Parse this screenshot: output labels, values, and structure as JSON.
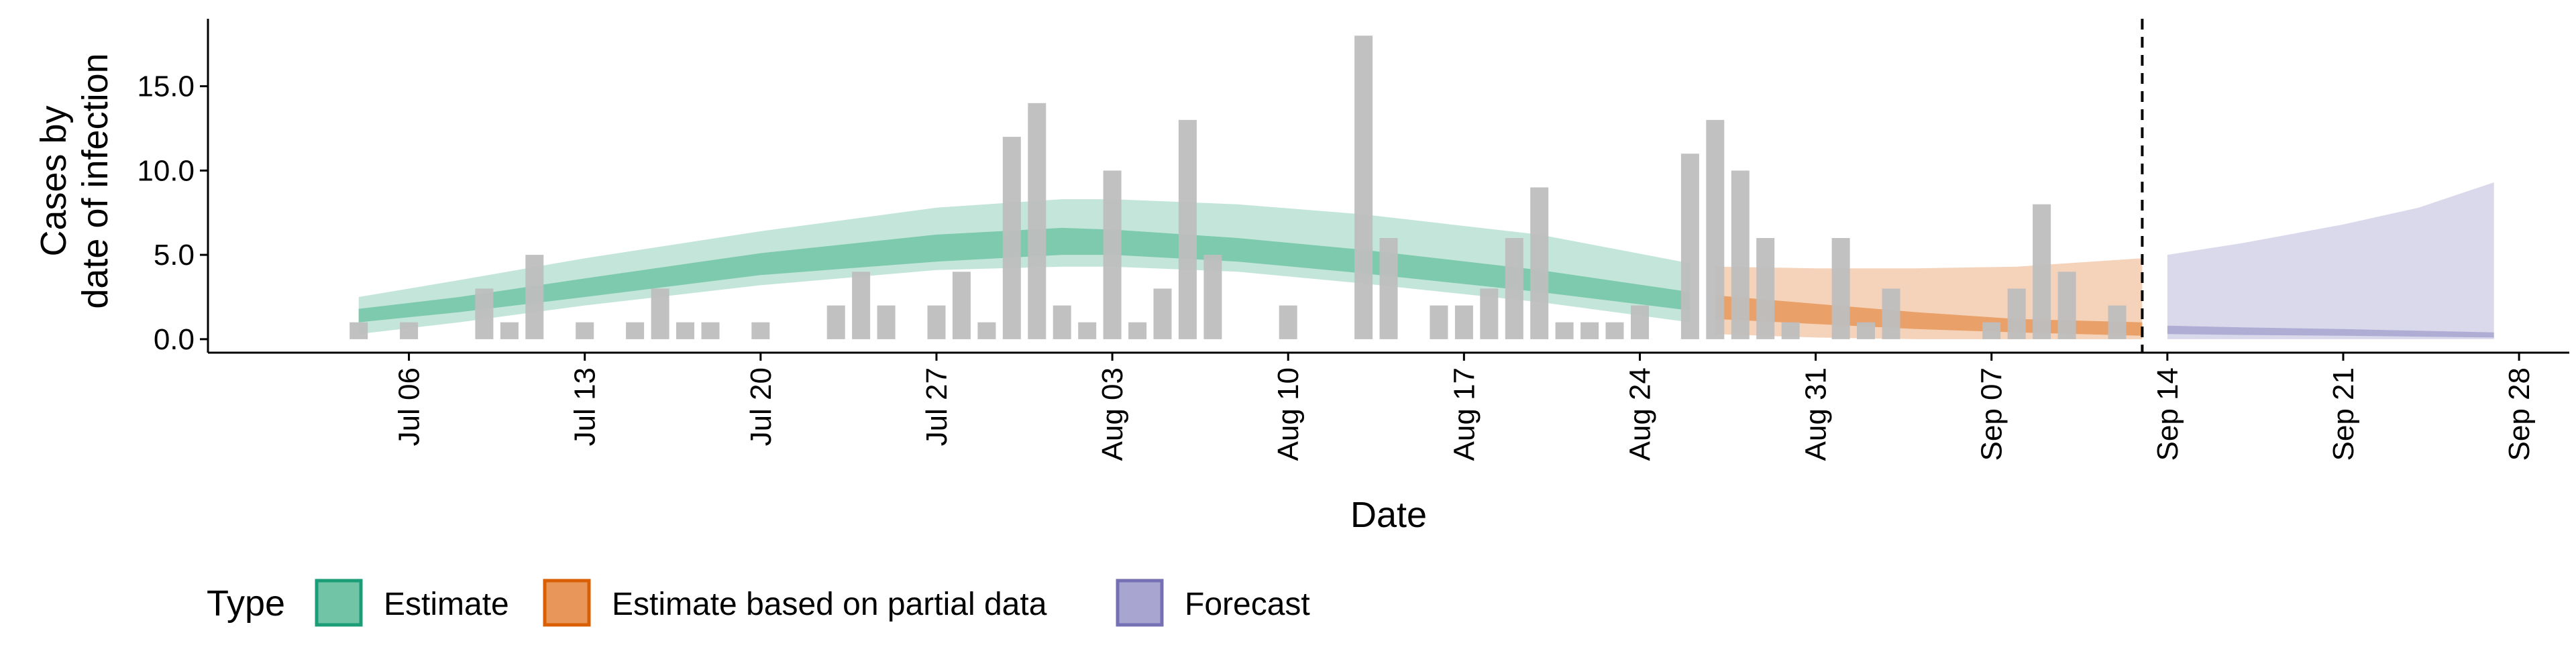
{
  "chart_data": {
    "type": "bar",
    "xlabel": "Date",
    "ylabel_lines": [
      "Cases by",
      "date of infection"
    ],
    "ylim": [
      -0.8,
      19
    ],
    "y_ticks": [
      0.0,
      5.0,
      10.0,
      15.0
    ],
    "y_tick_labels": [
      "0.0",
      "5.0",
      "10.0",
      "15.0"
    ],
    "x_range": [
      "2020-06-28",
      "2020-09-30"
    ],
    "x_ticks": [
      "2020-07-06",
      "2020-07-13",
      "2020-07-20",
      "2020-07-27",
      "2020-08-03",
      "2020-08-10",
      "2020-08-17",
      "2020-08-24",
      "2020-08-31",
      "2020-09-07",
      "2020-09-14",
      "2020-09-21",
      "2020-09-28"
    ],
    "x_tick_labels": [
      "Jul 06",
      "Jul 13",
      "Jul 20",
      "Jul 27",
      "Aug 03",
      "Aug 10",
      "Aug 17",
      "Aug 24",
      "Aug 31",
      "Sep 07",
      "Sep 14",
      "Sep 21",
      "Sep 28"
    ],
    "reported_cases": {
      "dates": [
        "2020-07-04",
        "2020-07-05",
        "2020-07-06",
        "2020-07-07",
        "2020-07-08",
        "2020-07-09",
        "2020-07-10",
        "2020-07-11",
        "2020-07-12",
        "2020-07-13",
        "2020-07-14",
        "2020-07-15",
        "2020-07-16",
        "2020-07-17",
        "2020-07-18",
        "2020-07-19",
        "2020-07-20",
        "2020-07-21",
        "2020-07-22",
        "2020-07-23",
        "2020-07-24",
        "2020-07-25",
        "2020-07-26",
        "2020-07-27",
        "2020-07-28",
        "2020-07-29",
        "2020-07-30",
        "2020-07-31",
        "2020-08-01",
        "2020-08-02",
        "2020-08-03",
        "2020-08-04",
        "2020-08-05",
        "2020-08-06",
        "2020-08-07",
        "2020-08-08",
        "2020-08-09",
        "2020-08-10",
        "2020-08-11",
        "2020-08-12",
        "2020-08-13",
        "2020-08-14",
        "2020-08-15",
        "2020-08-16",
        "2020-08-17",
        "2020-08-18",
        "2020-08-19",
        "2020-08-20",
        "2020-08-21",
        "2020-08-22",
        "2020-08-23",
        "2020-08-24",
        "2020-08-25",
        "2020-08-26",
        "2020-08-27",
        "2020-08-28",
        "2020-08-29",
        "2020-08-30",
        "2020-08-31",
        "2020-09-01",
        "2020-09-02",
        "2020-09-03",
        "2020-09-04",
        "2020-09-05",
        "2020-09-06",
        "2020-09-07",
        "2020-09-08",
        "2020-09-09",
        "2020-09-10",
        "2020-09-11",
        "2020-09-12"
      ],
      "values": [
        1,
        0,
        1,
        0,
        0,
        3,
        1,
        5,
        0,
        1,
        0,
        1,
        3,
        1,
        1,
        0,
        1,
        0,
        0,
        2,
        4,
        2,
        0,
        2,
        4,
        1,
        12,
        14,
        2,
        1,
        10,
        1,
        3,
        13,
        5,
        0,
        0,
        2,
        0,
        0,
        18,
        6,
        0,
        2,
        2,
        3,
        6,
        9,
        1,
        1,
        1,
        2,
        0,
        11,
        13,
        10,
        6,
        1,
        0,
        6,
        1,
        3,
        0,
        0,
        0,
        1,
        3,
        8,
        4,
        0,
        2
      ],
      "color": "#bebebe"
    },
    "series": [
      {
        "name": "Estimate",
        "color": "#1b9e77",
        "fill": "#72c4a6",
        "dates": [
          "2020-07-04",
          "2020-07-08",
          "2020-07-13",
          "2020-07-20",
          "2020-07-27",
          "2020-08-01",
          "2020-08-03",
          "2020-08-08",
          "2020-08-13",
          "2020-08-20",
          "2020-08-26"
        ],
        "lower90": [
          0.3,
          1.0,
          2.0,
          3.2,
          4.1,
          4.3,
          4.3,
          4.0,
          3.3,
          2.2,
          1.0
        ],
        "upper90": [
          2.5,
          3.5,
          4.8,
          6.4,
          7.8,
          8.3,
          8.3,
          8.0,
          7.4,
          6.2,
          4.5
        ],
        "lower50": [
          1.0,
          1.6,
          2.5,
          3.8,
          4.6,
          5.0,
          5.0,
          4.6,
          3.9,
          2.8,
          1.7
        ],
        "upper50": [
          1.8,
          2.5,
          3.6,
          5.1,
          6.2,
          6.6,
          6.5,
          6.0,
          5.3,
          4.1,
          2.8
        ]
      },
      {
        "name": "Estimate based on partial data",
        "color": "#d95f02",
        "fill": "#e8965a",
        "dates": [
          "2020-08-27",
          "2020-08-31",
          "2020-09-04",
          "2020-09-08",
          "2020-09-13"
        ],
        "lower90": [
          0.3,
          0.1,
          0.0,
          0.0,
          0.0
        ],
        "upper90": [
          4.3,
          4.2,
          4.2,
          4.3,
          4.8
        ],
        "lower50": [
          1.2,
          0.9,
          0.6,
          0.4,
          0.2
        ],
        "upper50": [
          2.6,
          2.1,
          1.6,
          1.2,
          1.0
        ]
      },
      {
        "name": "Forecast",
        "color": "#7570b3",
        "fill": "#a8a5d1",
        "dates": [
          "2020-09-14",
          "2020-09-17",
          "2020-09-21",
          "2020-09-24",
          "2020-09-27"
        ],
        "lower90": [
          0.0,
          0.0,
          0.0,
          0.0,
          0.0
        ],
        "upper90": [
          5.0,
          5.7,
          6.8,
          7.8,
          9.3
        ],
        "lower50": [
          0.3,
          0.25,
          0.2,
          0.15,
          0.1
        ],
        "upper50": [
          0.8,
          0.7,
          0.6,
          0.5,
          0.4
        ]
      }
    ],
    "vline_date": "2020-09-13",
    "legend": {
      "title": "Type",
      "placement": "bottom",
      "items": [
        {
          "label": "Estimate",
          "fill": "#72c4a6",
          "border": "#1b9e77"
        },
        {
          "label": "Estimate based on partial data",
          "fill": "#e8965a",
          "border": "#d95f02"
        },
        {
          "label": "Forecast",
          "fill": "#a8a5d1",
          "border": "#7570b3"
        }
      ]
    }
  }
}
